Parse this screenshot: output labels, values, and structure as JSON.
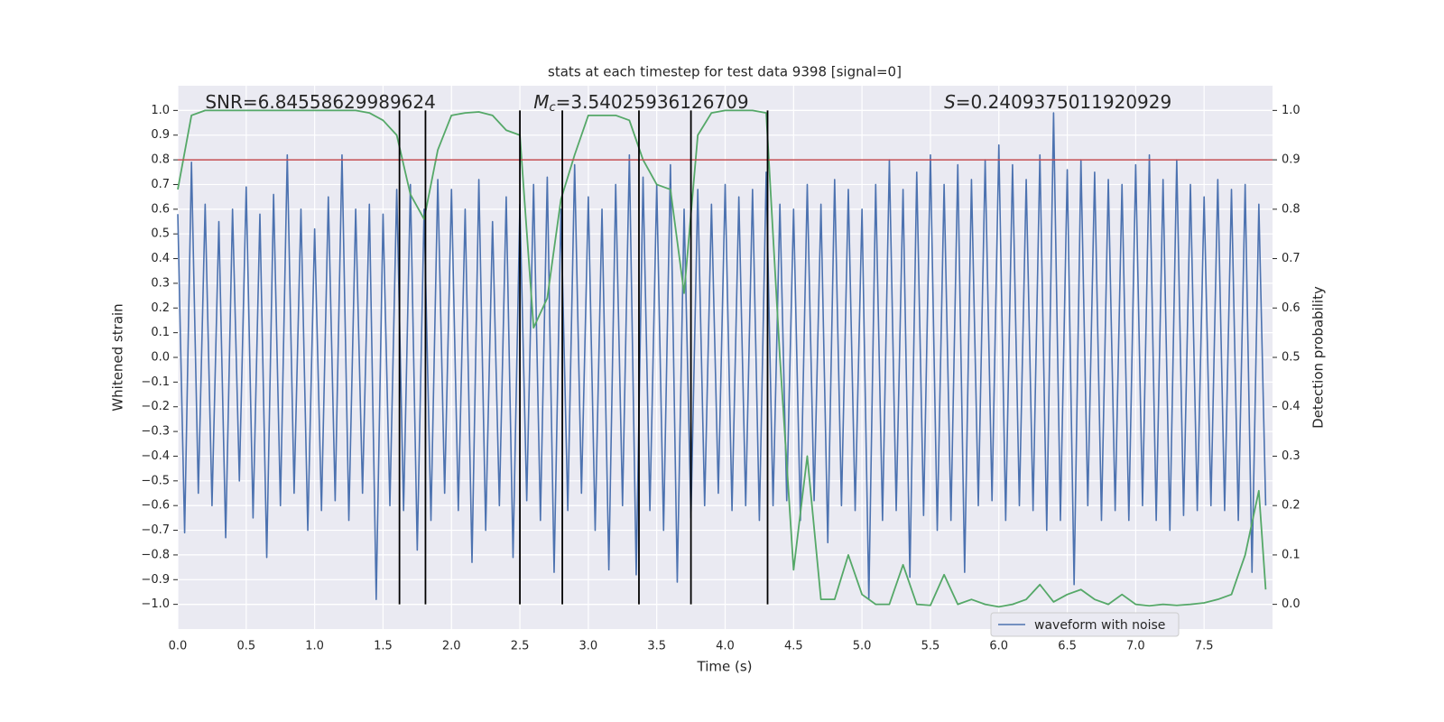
{
  "chart_data": {
    "type": "line",
    "title": "stats at each timestep for test data 9398 [signal=0]",
    "xlabel": "Time (s)",
    "ylabel": "Whitened strain",
    "y2label": "Detection probability",
    "xlim": [
      0,
      8.0
    ],
    "ylim": [
      -1.1,
      1.1
    ],
    "y2lim": [
      -0.05,
      1.05
    ],
    "xticks": [
      {
        "value": 0,
        "label": "0.0"
      },
      0.5,
      {
        "value": 1,
        "label": "1.0"
      },
      1.5,
      {
        "value": 2,
        "label": "2.0"
      },
      2.5,
      {
        "value": 3,
        "label": "3.0"
      },
      3.5,
      {
        "value": 4,
        "label": "4.0"
      },
      4.5,
      {
        "value": 5,
        "label": "5.0"
      },
      5.5,
      {
        "value": 6,
        "label": "6.0"
      },
      6.5,
      {
        "value": 7,
        "label": "7.0"
      },
      7.5
    ],
    "yticks": [
      {
        "value": -1,
        "label": "−1.0"
      },
      {
        "value": -0.9,
        "label": "−0.9"
      },
      {
        "value": -0.8,
        "label": "−0.8"
      },
      {
        "value": -0.7,
        "label": "−0.7"
      },
      {
        "value": -0.6,
        "label": "−0.6"
      },
      {
        "value": -0.5,
        "label": "−0.5"
      },
      {
        "value": -0.4,
        "label": "−0.4"
      },
      {
        "value": -0.3,
        "label": "−0.3"
      },
      {
        "value": -0.2,
        "label": "−0.2"
      },
      {
        "value": -0.1,
        "label": "−0.1"
      },
      {
        "value": 0,
        "label": "0.0"
      },
      0.1,
      0.2,
      0.3,
      0.4,
      0.5,
      0.6,
      0.7,
      0.8,
      0.9,
      {
        "value": 1,
        "label": "1.0"
      }
    ],
    "y2ticks": [
      {
        "value": 0,
        "label": "0.0"
      },
      0.1,
      0.2,
      0.3,
      0.4,
      0.5,
      0.6,
      0.7,
      0.8,
      0.9,
      {
        "value": 1,
        "label": "1.0"
      }
    ],
    "grid": true,
    "legend_loc": "lower-right",
    "annotations": [
      {
        "text": "SNR=6.84558629989624",
        "x": 0.2
      },
      {
        "symbol": "M",
        "subscript": "c",
        "text": "=3.54025936126709",
        "x": 2.6
      },
      {
        "symbol": "S",
        "text": "=0.2409375011920929",
        "x": 5.6
      }
    ],
    "hlines": [
      {
        "value": 0.8,
        "color": "#c44e52"
      }
    ],
    "vlines": {
      "color": "#000000",
      "x": [
        1.62,
        1.81,
        2.5,
        2.81,
        3.37,
        3.75,
        4.31
      ],
      "ymin": -1,
      "ymax": 1
    },
    "series": [
      {
        "name": "waveform with noise",
        "color": "#4c72b0",
        "x": [
          0,
          0.05,
          0.1,
          0.15,
          0.2,
          0.25,
          0.3,
          0.35,
          0.4,
          0.45,
          0.5,
          0.55,
          0.6,
          0.65,
          0.7,
          0.75,
          0.8,
          0.85,
          0.9,
          0.95,
          1.0,
          1.05,
          1.1,
          1.15,
          1.2,
          1.25,
          1.3,
          1.35,
          1.4,
          1.45,
          1.5,
          1.55,
          1.6,
          1.65,
          1.7,
          1.75,
          1.8,
          1.85,
          1.9,
          1.95,
          2.0,
          2.05,
          2.1,
          2.15,
          2.2,
          2.25,
          2.3,
          2.35,
          2.4,
          2.45,
          2.5,
          2.55,
          2.6,
          2.65,
          2.7,
          2.75,
          2.8,
          2.85,
          2.9,
          2.95,
          3.0,
          3.05,
          3.1,
          3.15,
          3.2,
          3.25,
          3.3,
          3.35,
          3.4,
          3.45,
          3.5,
          3.55,
          3.6,
          3.65,
          3.7,
          3.75,
          3.8,
          3.85,
          3.9,
          3.95,
          4.0,
          4.05,
          4.1,
          4.15,
          4.2,
          4.25,
          4.3,
          4.35,
          4.4,
          4.45,
          4.5,
          4.55,
          4.6,
          4.65,
          4.7,
          4.75,
          4.8,
          4.85,
          4.9,
          4.95,
          5.0,
          5.05,
          5.1,
          5.15,
          5.2,
          5.25,
          5.3,
          5.35,
          5.4,
          5.45,
          5.5,
          5.55,
          5.6,
          5.65,
          5.7,
          5.75,
          5.8,
          5.85,
          5.9,
          5.95,
          6.0,
          6.05,
          6.1,
          6.15,
          6.2,
          6.25,
          6.3,
          6.35,
          6.4,
          6.45,
          6.5,
          6.55,
          6.6,
          6.65,
          6.7,
          6.75,
          6.8,
          6.85,
          6.9,
          6.95,
          7.0,
          7.05,
          7.1,
          7.15,
          7.2,
          7.25,
          7.3,
          7.35,
          7.4,
          7.45,
          7.5,
          7.55,
          7.6,
          7.65,
          7.7,
          7.75,
          7.8,
          7.85,
          7.9,
          7.95
        ],
        "values": [
          0.58,
          -0.71,
          0.79,
          -0.55,
          0.62,
          -0.6,
          0.55,
          -0.73,
          0.6,
          -0.5,
          0.69,
          -0.65,
          0.58,
          -0.81,
          0.66,
          -0.6,
          0.82,
          -0.55,
          0.6,
          -0.7,
          0.52,
          -0.62,
          0.65,
          -0.58,
          0.82,
          -0.66,
          0.6,
          -0.55,
          0.62,
          -0.98,
          0.58,
          -0.6,
          0.68,
          -0.62,
          0.7,
          -0.78,
          0.6,
          -0.66,
          0.72,
          -0.55,
          0.68,
          -0.62,
          0.6,
          -0.83,
          0.72,
          -0.7,
          0.55,
          -0.6,
          0.65,
          -0.81,
          0.62,
          -0.58,
          0.7,
          -0.66,
          0.73,
          -0.87,
          0.6,
          -0.62,
          0.78,
          -0.55,
          0.65,
          -0.7,
          0.6,
          -0.86,
          0.7,
          -0.6,
          0.82,
          -0.88,
          0.73,
          -0.62,
          0.7,
          -0.7,
          0.78,
          -0.91,
          0.6,
          -0.65,
          0.68,
          -0.6,
          0.62,
          -0.55,
          0.7,
          -0.62,
          0.65,
          -0.6,
          0.68,
          -0.66,
          0.75,
          -0.6,
          0.62,
          -0.58,
          0.6,
          -0.66,
          0.7,
          -0.58,
          0.62,
          -0.75,
          0.72,
          -0.6,
          0.68,
          -0.62,
          0.6,
          -0.98,
          0.7,
          -0.66,
          0.8,
          -0.62,
          0.68,
          -0.89,
          0.75,
          -0.64,
          0.82,
          -0.7,
          0.7,
          -0.66,
          0.78,
          -0.87,
          0.72,
          -0.6,
          0.8,
          -0.58,
          0.86,
          -0.66,
          0.78,
          -0.6,
          0.72,
          -0.62,
          0.82,
          -0.7,
          0.99,
          -0.66,
          0.76,
          -0.92,
          0.8,
          -0.6,
          0.75,
          -0.66,
          0.72,
          -0.62,
          0.7,
          -0.66,
          0.78,
          -0.6,
          0.82,
          -0.66,
          0.72,
          -0.7,
          0.8,
          -0.64,
          0.7,
          -0.62,
          0.65,
          -0.6,
          0.72,
          -0.62,
          0.68,
          -0.66,
          0.7,
          -0.87,
          0.62,
          -0.6
        ]
      },
      {
        "color": "#55a868",
        "axis": "y2",
        "x": [
          0,
          0.1,
          0.2,
          0.3,
          0.4,
          0.5,
          0.6,
          0.7,
          0.8,
          0.9,
          1.0,
          1.1,
          1.2,
          1.3,
          1.4,
          1.5,
          1.6,
          1.7,
          1.8,
          1.9,
          2.0,
          2.1,
          2.2,
          2.3,
          2.4,
          2.5,
          2.6,
          2.7,
          2.8,
          2.9,
          3.0,
          3.1,
          3.2,
          3.3,
          3.4,
          3.5,
          3.6,
          3.7,
          3.8,
          3.9,
          4.0,
          4.1,
          4.2,
          4.3,
          4.4,
          4.5,
          4.6,
          4.7,
          4.8,
          4.9,
          5.0,
          5.1,
          5.2,
          5.3,
          5.4,
          5.5,
          5.6,
          5.7,
          5.8,
          5.9,
          6.0,
          6.1,
          6.2,
          6.3,
          6.4,
          6.5,
          6.6,
          6.7,
          6.8,
          6.9,
          7.0,
          7.1,
          7.2,
          7.3,
          7.4,
          7.5,
          7.6,
          7.7,
          7.8,
          7.9,
          7.95
        ],
        "values": [
          0.84,
          0.99,
          1,
          1,
          1,
          1,
          1,
          1,
          1,
          1,
          1,
          1,
          1,
          1,
          0.995,
          0.98,
          0.95,
          0.83,
          0.78,
          0.92,
          0.99,
          0.995,
          0.997,
          0.99,
          0.96,
          0.95,
          0.56,
          0.62,
          0.82,
          0.91,
          0.99,
          0.99,
          0.99,
          0.98,
          0.9,
          0.85,
          0.84,
          0.63,
          0.95,
          0.995,
          1,
          1,
          1,
          0.995,
          0.5,
          0.07,
          0.3,
          0.01,
          0.01,
          0.1,
          0.02,
          0,
          0,
          0.08,
          0,
          -0.002,
          0.06,
          0,
          0.01,
          0,
          -0.005,
          0,
          0.01,
          0.04,
          0.005,
          0.02,
          0.03,
          0.01,
          0,
          0.02,
          0,
          -0.003,
          0,
          -0.002,
          0,
          0.003,
          0.01,
          0.02,
          0.1,
          0.23,
          0.03
        ]
      }
    ]
  }
}
